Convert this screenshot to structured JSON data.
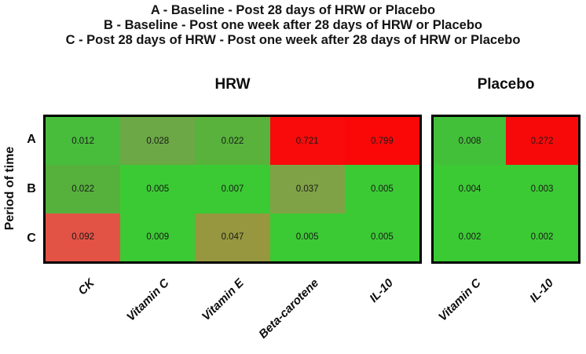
{
  "header": {
    "lines": [
      "A - Baseline - Post 28 days of HRW or Placebo",
      "B - Baseline - Post one week after 28 days of HRW or Placebo",
      "C - Post 28 days of HRW - Post one week after 28 days of HRW or Placebo"
    ]
  },
  "colors": {
    "significant_green": "#3BCA33",
    "nonsignificant_red": "#F90909",
    "panel_border": "#000000",
    "cell_text": "#1a1a1a"
  },
  "chart_data": {
    "type": "heatmap",
    "ylabel": "Period of time",
    "row_labels": [
      "A",
      "B",
      "C"
    ],
    "panels": [
      {
        "title": "HRW",
        "columns": [
          "CK",
          "Vitamin C",
          "Vitamin E",
          "Beta-carotene",
          "IL-10"
        ],
        "rows": [
          "A",
          "B",
          "C"
        ],
        "cells": [
          [
            {
              "value": "0.012",
              "color": "#47BD3B"
            },
            {
              "value": "0.028",
              "color": "#6CA845"
            },
            {
              "value": "0.022",
              "color": "#58B23C"
            },
            {
              "value": "0.721",
              "color": "#F90B0B"
            },
            {
              "value": "0.799",
              "color": "#FA0808"
            }
          ],
          [
            {
              "value": "0.022",
              "color": "#56B13C"
            },
            {
              "value": "0.005",
              "color": "#3BCA33"
            },
            {
              "value": "0.007",
              "color": "#3BCA33"
            },
            {
              "value": "0.037",
              "color": "#7FA246"
            },
            {
              "value": "0.005",
              "color": "#3BCA33"
            }
          ],
          [
            {
              "value": "0.092",
              "color": "#E25245"
            },
            {
              "value": "0.009",
              "color": "#3BCA33"
            },
            {
              "value": "0.047",
              "color": "#96973F"
            },
            {
              "value": "0.005",
              "color": "#3BCA33"
            },
            {
              "value": "0.005",
              "color": "#3BCA33"
            }
          ]
        ]
      },
      {
        "title": "Placebo",
        "columns": [
          "Vitamin C",
          "IL-10"
        ],
        "rows": [
          "A",
          "B",
          "C"
        ],
        "cells": [
          [
            {
              "value": "0.008",
              "color": "#42C039"
            },
            {
              "value": "0.272",
              "color": "#F80909"
            }
          ],
          [
            {
              "value": "0.004",
              "color": "#3BCA33"
            },
            {
              "value": "0.003",
              "color": "#3BCA33"
            }
          ],
          [
            {
              "value": "0.002",
              "color": "#3BCA33"
            },
            {
              "value": "0.002",
              "color": "#3BCA33"
            }
          ]
        ]
      }
    ]
  }
}
